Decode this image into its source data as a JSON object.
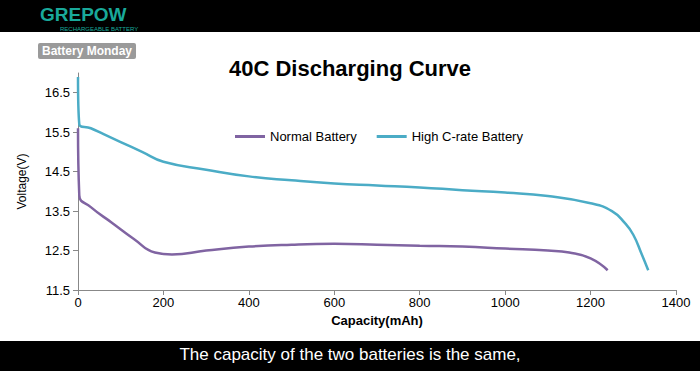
{
  "chart_data": {
    "type": "line",
    "title": "40C Discharging Curve",
    "x_label": "Capacity(mAh)",
    "y_label": "Voltage(V)",
    "annotations": [
      "GREPOW",
      "RECHARGEABLE BATTERY",
      "Battery Monday",
      "The capacity of the two batteries is the same,"
    ],
    "series": [
      {
        "name": "Normal Battery",
        "color": "#8064a2",
        "x": [
          0,
          3,
          30,
          80,
          130,
          180,
          220,
          300,
          400,
          500,
          600,
          700,
          800,
          900,
          1000,
          1100,
          1150,
          1200,
          1240
        ],
        "values": [
          15.6,
          13.9,
          13.6,
          13.2,
          12.8,
          12.45,
          12.4,
          12.5,
          12.6,
          12.65,
          12.67,
          12.65,
          12.62,
          12.6,
          12.55,
          12.5,
          12.45,
          12.3,
          12.0
        ]
      },
      {
        "name": "High C-rate Battery",
        "color": "#4bacc6",
        "x": [
          0,
          3,
          30,
          60,
          100,
          150,
          200,
          300,
          400,
          500,
          600,
          700,
          800,
          900,
          1000,
          1100,
          1200,
          1250,
          1280,
          1300,
          1320,
          1335
        ],
        "values": [
          16.9,
          15.7,
          15.6,
          15.45,
          15.25,
          15.0,
          14.75,
          14.55,
          14.38,
          14.28,
          14.2,
          14.15,
          14.1,
          14.03,
          13.97,
          13.88,
          13.7,
          13.5,
          13.2,
          12.9,
          12.4,
          12.0
        ]
      }
    ],
    "xlim": [
      0,
      1400
    ],
    "xticks": [
      0,
      200,
      400,
      600,
      800,
      1000,
      1200,
      1400
    ],
    "ylim": [
      11.5,
      17
    ],
    "yticks": [
      11.5,
      12.5,
      13.5,
      14.5,
      15.5,
      16.5
    ],
    "grid": false,
    "legend": "top"
  }
}
